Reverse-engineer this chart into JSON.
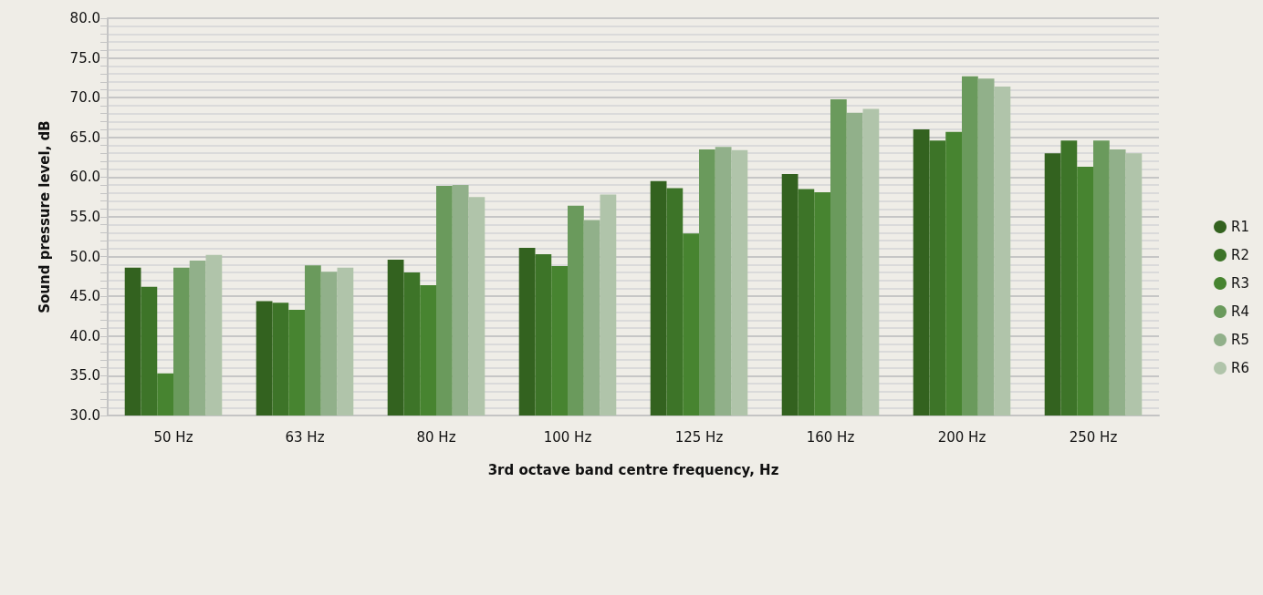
{
  "chart_data": {
    "type": "bar",
    "xlabel": "3rd octave band centre frequency, Hz",
    "ylabel": "Sound pressure level, dB",
    "categories": [
      "50 Hz",
      "63 Hz",
      "80 Hz",
      "100 Hz",
      "125 Hz",
      "160 Hz",
      "200 Hz",
      "250 Hz"
    ],
    "series": [
      {
        "name": "R1",
        "color": "#33621f",
        "values": [
          48.6,
          44.4,
          49.6,
          51.1,
          59.5,
          60.4,
          66.0,
          63.0
        ]
      },
      {
        "name": "R2",
        "color": "#3d7428",
        "values": [
          46.2,
          44.2,
          48.0,
          50.3,
          58.6,
          58.5,
          64.6,
          64.6
        ]
      },
      {
        "name": "R3",
        "color": "#478430",
        "values": [
          35.3,
          43.3,
          46.4,
          48.8,
          52.9,
          58.1,
          65.7,
          61.3
        ]
      },
      {
        "name": "R4",
        "color": "#6a9a5c",
        "values": [
          48.6,
          48.9,
          58.9,
          56.4,
          63.5,
          69.8,
          72.7,
          64.6
        ]
      },
      {
        "name": "R5",
        "color": "#91b08a",
        "values": [
          49.5,
          48.1,
          59.0,
          54.6,
          63.8,
          68.1,
          72.4,
          63.5
        ]
      },
      {
        "name": "R6",
        "color": "#b0c4aa",
        "values": [
          50.2,
          48.6,
          57.5,
          57.8,
          63.4,
          68.6,
          71.4,
          63.0
        ]
      }
    ],
    "ylim": [
      30,
      80
    ],
    "yticks": [
      {
        "value": 30,
        "label": "30.0"
      },
      {
        "value": 31,
        "label": null
      },
      {
        "value": 32,
        "label": null
      },
      {
        "value": 33,
        "label": null
      },
      {
        "value": 34,
        "label": null
      },
      {
        "value": 35,
        "label": "35.0"
      },
      {
        "value": 36,
        "label": null
      },
      {
        "value": 37,
        "label": null
      },
      {
        "value": 38,
        "label": null
      },
      {
        "value": 39,
        "label": null
      },
      {
        "value": 40,
        "label": "40.0"
      },
      {
        "value": 41,
        "label": null
      },
      {
        "value": 42,
        "label": null
      },
      {
        "value": 43,
        "label": null
      },
      {
        "value": 44,
        "label": null
      },
      {
        "value": 45,
        "label": "45.0"
      },
      {
        "value": 46,
        "label": null
      },
      {
        "value": 47,
        "label": null
      },
      {
        "value": 48,
        "label": null
      },
      {
        "value": 49,
        "label": null
      },
      {
        "value": 50,
        "label": "50.0"
      },
      {
        "value": 51,
        "label": null
      },
      {
        "value": 52,
        "label": null
      },
      {
        "value": 53,
        "label": null
      },
      {
        "value": 54,
        "label": null
      },
      {
        "value": 55,
        "label": "55.0"
      },
      {
        "value": 56,
        "label": null
      },
      {
        "value": 57,
        "label": null
      },
      {
        "value": 58,
        "label": null
      },
      {
        "value": 59,
        "label": null
      },
      {
        "value": 60,
        "label": "60.0"
      },
      {
        "value": 61,
        "label": null
      },
      {
        "value": 62,
        "label": null
      },
      {
        "value": 63,
        "label": null
      },
      {
        "value": 64,
        "label": null
      },
      {
        "value": 65,
        "label": "65.0"
      },
      {
        "value": 66,
        "label": null
      },
      {
        "value": 67,
        "label": null
      },
      {
        "value": 68,
        "label": null
      },
      {
        "value": 69,
        "label": null
      },
      {
        "value": 70,
        "label": "70.0"
      },
      {
        "value": 71,
        "label": null
      },
      {
        "value": 72,
        "label": null
      },
      {
        "value": 73,
        "label": null
      },
      {
        "value": 74,
        "label": null
      },
      {
        "value": 75,
        "label": "75.0"
      },
      {
        "value": 76,
        "label": null
      },
      {
        "value": 77,
        "label": null
      },
      {
        "value": 78,
        "label": null
      },
      {
        "value": 79,
        "label": null
      },
      {
        "value": 80,
        "label": "80.0"
      }
    ],
    "grid": "y",
    "legend": "right"
  }
}
